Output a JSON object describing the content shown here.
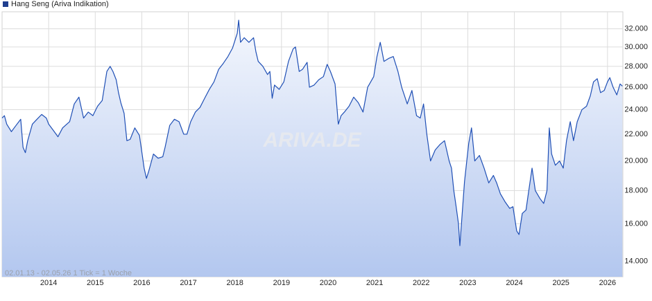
{
  "chart_data": {
    "type": "area",
    "title": "Hang Seng (Ariva Indikation)",
    "subtitle": "02.01.13 - 02.05.26   1 Tick = 1 Woche",
    "watermark": "ARIVA.DE",
    "color": "#1f4fb5",
    "log_scale": true,
    "grid": true,
    "xlim": [
      2013.0,
      2026.33
    ],
    "xticks": [
      2014,
      2015,
      2016,
      2017,
      2018,
      2019,
      2020,
      2021,
      2022,
      2023,
      2024,
      2025,
      2026
    ],
    "ylim": [
      13250,
      34000
    ],
    "yticks": [
      {
        "value": 14000,
        "label": "14.000"
      },
      {
        "value": 16000,
        "label": "16.000"
      },
      {
        "value": 18000,
        "label": "18.000"
      },
      {
        "value": 20000,
        "label": "20.000"
      },
      {
        "value": 22000,
        "label": "22.000"
      },
      {
        "value": 24000,
        "label": "24.000"
      },
      {
        "value": 26000,
        "label": "26.000"
      },
      {
        "value": 28000,
        "label": "28.000"
      },
      {
        "value": 30000,
        "label": "30.000"
      },
      {
        "value": 32000,
        "label": "32.000"
      }
    ],
    "x": [
      2013.0,
      2013.05,
      2013.1,
      2013.2,
      2013.3,
      2013.4,
      2013.45,
      2013.5,
      2013.55,
      2013.65,
      2013.75,
      2013.85,
      2013.95,
      2014.0,
      2014.1,
      2014.2,
      2014.3,
      2014.45,
      2014.55,
      2014.65,
      2014.75,
      2014.85,
      2014.95,
      2015.05,
      2015.15,
      2015.25,
      2015.32,
      2015.38,
      2015.45,
      2015.5,
      2015.55,
      2015.62,
      2015.68,
      2015.75,
      2015.85,
      2015.95,
      2016.05,
      2016.1,
      2016.15,
      2016.25,
      2016.35,
      2016.45,
      2016.5,
      2016.6,
      2016.7,
      2016.8,
      2016.9,
      2016.97,
      2017.05,
      2017.15,
      2017.25,
      2017.35,
      2017.45,
      2017.55,
      2017.65,
      2017.75,
      2017.85,
      2017.95,
      2018.05,
      2018.08,
      2018.12,
      2018.2,
      2018.3,
      2018.4,
      2018.45,
      2018.5,
      2018.6,
      2018.7,
      2018.75,
      2018.8,
      2018.85,
      2018.95,
      2019.05,
      2019.15,
      2019.25,
      2019.3,
      2019.38,
      2019.45,
      2019.55,
      2019.6,
      2019.7,
      2019.8,
      2019.9,
      2019.98,
      2020.05,
      2020.15,
      2020.22,
      2020.28,
      2020.35,
      2020.45,
      2020.55,
      2020.65,
      2020.75,
      2020.85,
      2020.98,
      2021.05,
      2021.12,
      2021.2,
      2021.3,
      2021.4,
      2021.5,
      2021.58,
      2021.7,
      2021.8,
      2021.9,
      2021.98,
      2022.05,
      2022.12,
      2022.2,
      2022.3,
      2022.4,
      2022.5,
      2022.6,
      2022.65,
      2022.7,
      2022.75,
      2022.8,
      2022.83,
      2022.88,
      2022.93,
      2023.02,
      2023.08,
      2023.15,
      2023.25,
      2023.35,
      2023.45,
      2023.55,
      2023.62,
      2023.7,
      2023.8,
      2023.9,
      2023.97,
      2024.05,
      2024.1,
      2024.17,
      2024.25,
      2024.3,
      2024.38,
      2024.45,
      2024.55,
      2024.63,
      2024.7,
      2024.75,
      2024.8,
      2024.88,
      2024.97,
      2025.05,
      2025.12,
      2025.2,
      2025.27,
      2025.35,
      2025.45,
      2025.55,
      2025.63,
      2025.7,
      2025.78,
      2025.85,
      2025.93,
      2026.0,
      2026.05,
      2026.12,
      2026.2,
      2026.27,
      2026.32
    ],
    "values": [
      23300,
      23500,
      22800,
      22200,
      22700,
      23200,
      21000,
      20600,
      21500,
      22800,
      23200,
      23600,
      23300,
      22800,
      22300,
      21800,
      22500,
      23000,
      24500,
      25100,
      23300,
      23800,
      23500,
      24300,
      24800,
      27500,
      28000,
      27500,
      26700,
      25500,
      24600,
      23700,
      21500,
      21600,
      22500,
      21900,
      19500,
      18800,
      19300,
      20500,
      20200,
      20300,
      21000,
      22700,
      23200,
      23000,
      22000,
      22000,
      23000,
      23800,
      24200,
      25000,
      25800,
      26500,
      27700,
      28300,
      29000,
      29900,
      31500,
      33000,
      30500,
      31000,
      30500,
      31000,
      29500,
      28500,
      28000,
      27200,
      27500,
      25000,
      26200,
      25800,
      26500,
      28500,
      29800,
      30000,
      27500,
      27700,
      28400,
      26000,
      26200,
      26700,
      27000,
      28200,
      27500,
      26300,
      22800,
      23500,
      23800,
      24300,
      25100,
      24600,
      23800,
      26000,
      27000,
      29000,
      30500,
      28500,
      28800,
      29000,
      27500,
      26000,
      24500,
      25700,
      23500,
      23300,
      24500,
      22000,
      20000,
      20800,
      21200,
      21500,
      20000,
      19500,
      18000,
      17000,
      16000,
      14800,
      16600,
      18600,
      21300,
      22500,
      20000,
      20400,
      19500,
      18500,
      19000,
      18500,
      17800,
      17300,
      16900,
      17000,
      15600,
      15400,
      16600,
      16800,
      17800,
      19500,
      18000,
      17500,
      17200,
      18000,
      22500,
      20500,
      19700,
      20000,
      19500,
      21500,
      23000,
      21500,
      23000,
      24000,
      24300,
      25200,
      26500,
      26800,
      25500,
      25700,
      26500,
      26900,
      26000,
      25300,
      26300,
      26100
    ]
  }
}
